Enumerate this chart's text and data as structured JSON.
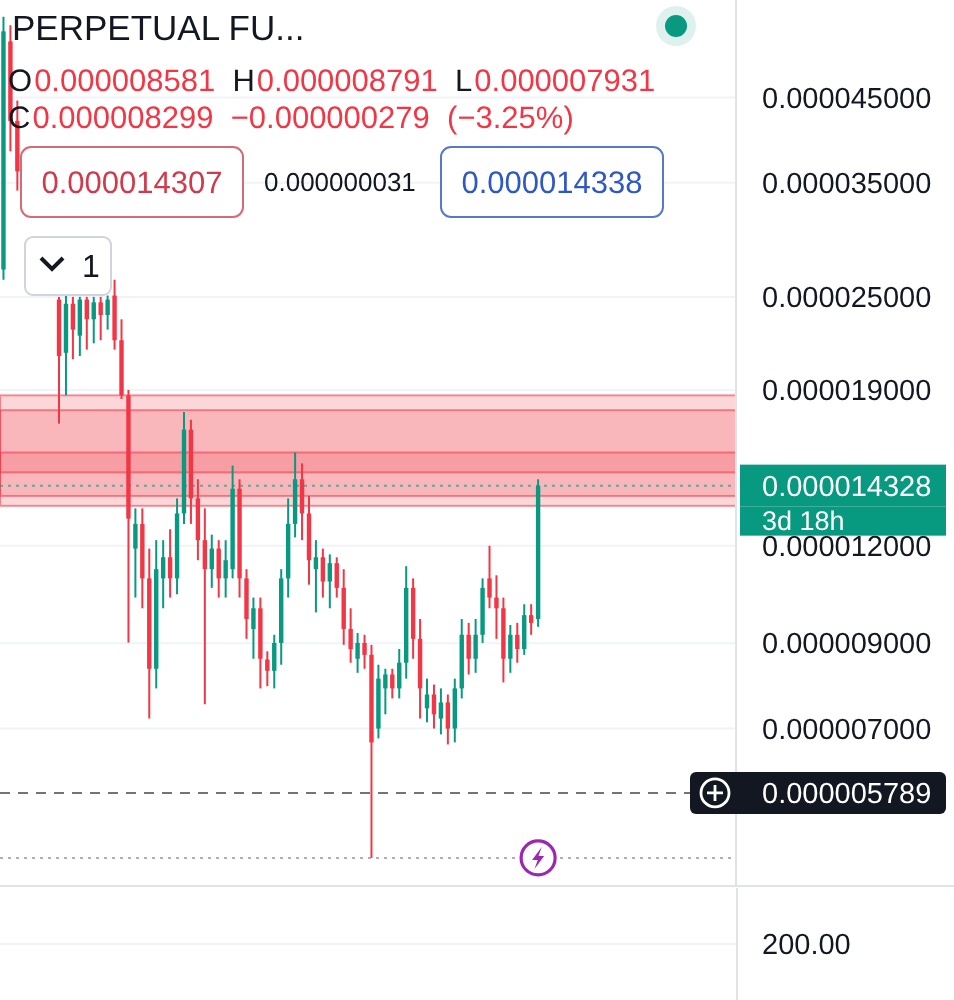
{
  "chart_data": {
    "type": "candlestick",
    "title": "PERPETUAL FU...",
    "categories": [
      null,
      null,
      null,
      null,
      null,
      null,
      null,
      null,
      null,
      null,
      null,
      null,
      null,
      null,
      null,
      null,
      null,
      null,
      null,
      null,
      null,
      null,
      null,
      null,
      null,
      null,
      null,
      null,
      null,
      null,
      null,
      null,
      null,
      null,
      null,
      null,
      null,
      null,
      null,
      null,
      null,
      null,
      null,
      null,
      null,
      null,
      null,
      null,
      null,
      null,
      null,
      null,
      null,
      null,
      null,
      null,
      null,
      null,
      null,
      null,
      null,
      null,
      null,
      null,
      null,
      null,
      null,
      null,
      null,
      null,
      null,
      null,
      null,
      null,
      null,
      null,
      null,
      null,
      null,
      null,
      null,
      null,
      null,
      null,
      null,
      null,
      null,
      null,
      null,
      null,
      null,
      null,
      null,
      null,
      null,
      null,
      null,
      null,
      null,
      null,
      null,
      null,
      null,
      null,
      null,
      null
    ],
    "ohlc": [
      [
        2.71e-05,
        5.71e-05,
        2.63e-05,
        5.47e-05
      ],
      [
        5.31e-05,
        5.57e-05,
        3.84e-05,
        4.2e-05
      ],
      [
        4.2e-05,
        4.46e-05,
        3.42e-05,
        3.62e-05
      ],
      null,
      null,
      null,
      null,
      null,
      [
        2.48e-05,
        2.5e-05,
        1.72e-05,
        2.1e-05
      ],
      [
        2.12e-05,
        2.51e-05,
        1.87e-05,
        2.45e-05
      ],
      [
        2.45e-05,
        2.5e-05,
        2.08e-05,
        2.27e-05
      ],
      [
        2.23e-05,
        2.5e-05,
        2.1e-05,
        2.48e-05
      ],
      [
        2.48e-05,
        2.5e-05,
        2.14e-05,
        2.34e-05
      ],
      [
        2.34e-05,
        2.5e-05,
        2.18e-05,
        2.46e-05
      ],
      [
        2.46e-05,
        2.5e-05,
        2.2e-05,
        2.37e-05
      ],
      [
        2.37e-05,
        2.51e-05,
        2.27e-05,
        2.48e-05
      ],
      [
        2.51e-05,
        2.63e-05,
        2.14e-05,
        2.2e-05
      ],
      [
        2.2e-05,
        2.34e-05,
        1.85e-05,
        1.87e-05
      ],
      [
        1.87e-05,
        1.9e-05,
        9.02e-06,
        1.3e-05
      ],
      [
        1.19e-05,
        1.34e-05,
        1.03e-05,
        1.28e-05
      ],
      [
        1.28e-05,
        1.34e-05,
        9.98e-06,
        1.09e-05
      ],
      [
        1.09e-05,
        1.19e-05,
        7.21e-06,
        8.35e-06
      ],
      [
        8.35e-06,
        1.22e-05,
        7.88e-06,
        1.12e-05
      ],
      [
        1.09e-05,
        1.22e-05,
        9.98e-06,
        1.16e-05
      ],
      [
        1.16e-05,
        1.26e-05,
        1.03e-05,
        1.09e-05
      ],
      [
        1.09e-05,
        1.38e-05,
        1.04e-05,
        1.32e-05
      ],
      [
        1.32e-05,
        1.78e-05,
        1.28e-05,
        1.69e-05
      ],
      [
        1.69e-05,
        1.74e-05,
        1.28e-05,
        1.38e-05
      ],
      [
        1.38e-05,
        1.46e-05,
        1.15e-05,
        1.22e-05
      ],
      [
        1.22e-05,
        1.34e-05,
        7.52e-06,
        1.12e-05
      ],
      [
        1.12e-05,
        1.24e-05,
        1.06e-05,
        1.19e-05
      ],
      [
        1.19e-05,
        1.22e-05,
        1.03e-05,
        1.09e-05
      ],
      [
        1.09e-05,
        1.22e-05,
        1.03e-05,
        1.15e-05
      ],
      [
        1.12e-05,
        1.52e-05,
        1.09e-05,
        1.42e-05
      ],
      [
        1.42e-05,
        1.46e-05,
        1.03e-05,
        1.09e-05
      ],
      [
        1.09e-05,
        1.12e-05,
        9.12e-06,
        9.67e-06
      ],
      [
        9.39e-06,
        1.03e-05,
        8.6e-06,
        9.98e-06
      ],
      [
        9.98e-06,
        1.03e-05,
        7.88e-06,
        8.6e-06
      ],
      [
        8.581e-06,
        8.791e-06,
        7.931e-06,
        8.299e-06
      ],
      [
        8.3e-06,
        9.23e-06,
        7.88e-06,
        9.01e-06
      ],
      [
        9.01e-06,
        1.12e-05,
        8.45e-06,
        1.09e-05
      ],
      [
        1.09e-05,
        1.38e-05,
        1.03e-05,
        1.28e-05
      ],
      [
        1.28e-05,
        1.58e-05,
        1.23e-05,
        1.46e-05
      ],
      [
        1.46e-05,
        1.53e-05,
        1.22e-05,
        1.32e-05
      ],
      [
        1.32e-05,
        1.39e-05,
        1.07e-05,
        1.15e-05
      ],
      [
        1.12e-05,
        1.22e-05,
        9.86e-06,
        1.16e-05
      ],
      [
        1.16e-05,
        1.19e-05,
        1.03e-05,
        1.08e-05
      ],
      [
        1.08e-05,
        1.17e-05,
        9.98e-06,
        1.14e-05
      ],
      [
        1.14e-05,
        1.16e-05,
        1.03e-05,
        1.06e-05
      ],
      [
        1.06e-05,
        1.12e-05,
        8.96e-06,
        9.39e-06
      ],
      [
        9.39e-06,
        9.98e-06,
        8.5e-06,
        8.85e-06
      ],
      [
        8.6e-06,
        9.28e-06,
        8.25e-06,
        9.01e-06
      ],
      [
        9.01e-06,
        9.23e-06,
        8.35e-06,
        8.7e-06
      ],
      [
        8.7e-06,
        8.96e-06,
        4.78e-06,
        6.72e-06
      ],
      [
        7e-06,
        8.45e-06,
        6.8e-06,
        8.11e-06
      ],
      [
        7.88e-06,
        8.35e-06,
        7.3e-06,
        8.21e-06
      ],
      [
        8.21e-06,
        8.35e-06,
        7.65e-06,
        7.88e-06
      ],
      [
        7.88e-06,
        8.85e-06,
        7.65e-06,
        8.5e-06
      ],
      [
        8.5e-06,
        1.13e-05,
        8.11e-06,
        1.06e-05
      ],
      [
        1.06e-05,
        1.09e-05,
        8.6e-06,
        9.12e-06
      ],
      [
        9.12e-06,
        9.67e-06,
        7.21e-06,
        7.88e-06
      ],
      [
        7.43e-06,
        8.11e-06,
        7.13e-06,
        7.74e-06
      ],
      [
        7.74e-06,
        7.97e-06,
        7e-06,
        7.3e-06
      ],
      [
        7.21e-06,
        7.88e-06,
        6.88e-06,
        7.56e-06
      ],
      [
        7.56e-06,
        7.74e-06,
        6.68e-06,
        7e-06
      ],
      [
        7e-06,
        8.11e-06,
        6.72e-06,
        7.88e-06
      ],
      [
        7.88e-06,
        9.67e-06,
        7.65e-06,
        9.23e-06
      ],
      [
        9.23e-06,
        9.56e-06,
        8.21e-06,
        8.6e-06
      ],
      [
        8.6e-06,
        9.67e-06,
        8.25e-06,
        9.23e-06
      ],
      [
        9.23e-06,
        1.09e-05,
        9.01e-06,
        1.06e-05
      ],
      [
        1.09e-05,
        1.2e-05,
        9.98e-06,
        1.03e-05
      ],
      [
        1.03e-05,
        1.1e-05,
        9.12e-06,
        9.98e-06
      ],
      [
        9.98e-06,
        1.03e-05,
        8.02e-06,
        8.6e-06
      ],
      [
        8.6e-06,
        9.5e-06,
        8.25e-06,
        9.23e-06
      ],
      [
        9.23e-06,
        9.56e-06,
        8.5e-06,
        8.85e-06
      ],
      [
        8.85e-06,
        1.01e-05,
        8.7e-06,
        9.78e-06
      ],
      [
        9.78e-06,
        1.01e-05,
        9.23e-06,
        9.56e-06
      ],
      [
        9.67e-06,
        1.46e-05,
        9.45e-06,
        1.4328e-05
      ],
      null,
      null,
      null,
      null,
      null,
      null,
      null,
      null,
      null,
      null,
      null,
      null,
      null,
      null,
      null,
      null,
      null,
      null,
      null,
      null,
      null,
      null,
      null,
      null,
      null,
      null,
      null,
      null
    ],
    "log": "y",
    "ylim": [
      4.4e-06,
      6e-05
    ],
    "yticks": [
      {
        "value": 7e-06,
        "label": "0.000007000"
      },
      {
        "value": 9e-06,
        "label": "0.000009000"
      },
      {
        "value": 1.2e-05,
        "label": "0.000012000"
      },
      {
        "value": 1.9e-05,
        "label": "0.000019000"
      },
      {
        "value": 2.5e-05,
        "label": "0.000025000"
      },
      {
        "value": 3.5e-05,
        "label": "0.000035000"
      },
      {
        "value": 4.5e-05,
        "label": "0.000045000"
      }
    ],
    "grid": "y",
    "bands": [
      {
        "axis": "y",
        "from": 1.39e-05,
        "to": 1.87e-05,
        "color": "#f23645"
      },
      {
        "axis": "y",
        "from": 1.49e-05,
        "to": 1.79e-05,
        "color": "#f23645"
      },
      {
        "axis": "y",
        "from": 1.35e-05,
        "to": 1.58e-05,
        "color": "#f23645"
      }
    ],
    "ref_lines": [
      {
        "axis": "y",
        "value": 1.4328e-05,
        "label": "0.000014328",
        "color": "#089981",
        "line_style": "dotted"
      },
      {
        "axis": "y",
        "value": 5.789e-06,
        "label": "0.000005789",
        "color": "#131722",
        "line_style": "dashed"
      },
      {
        "axis": "y",
        "value": 4.78e-06,
        "color": "#787b86",
        "line_style": "dotted"
      }
    ],
    "annotations": [
      "O0.000008581 H0.000008791 L0.000007931",
      "C0.000008299 −0.000000279 (−3.25%)",
      "0.000014307",
      "0.000000031",
      "0.000014338",
      "1",
      "3d 18h",
      "200.00"
    ]
  }
}
